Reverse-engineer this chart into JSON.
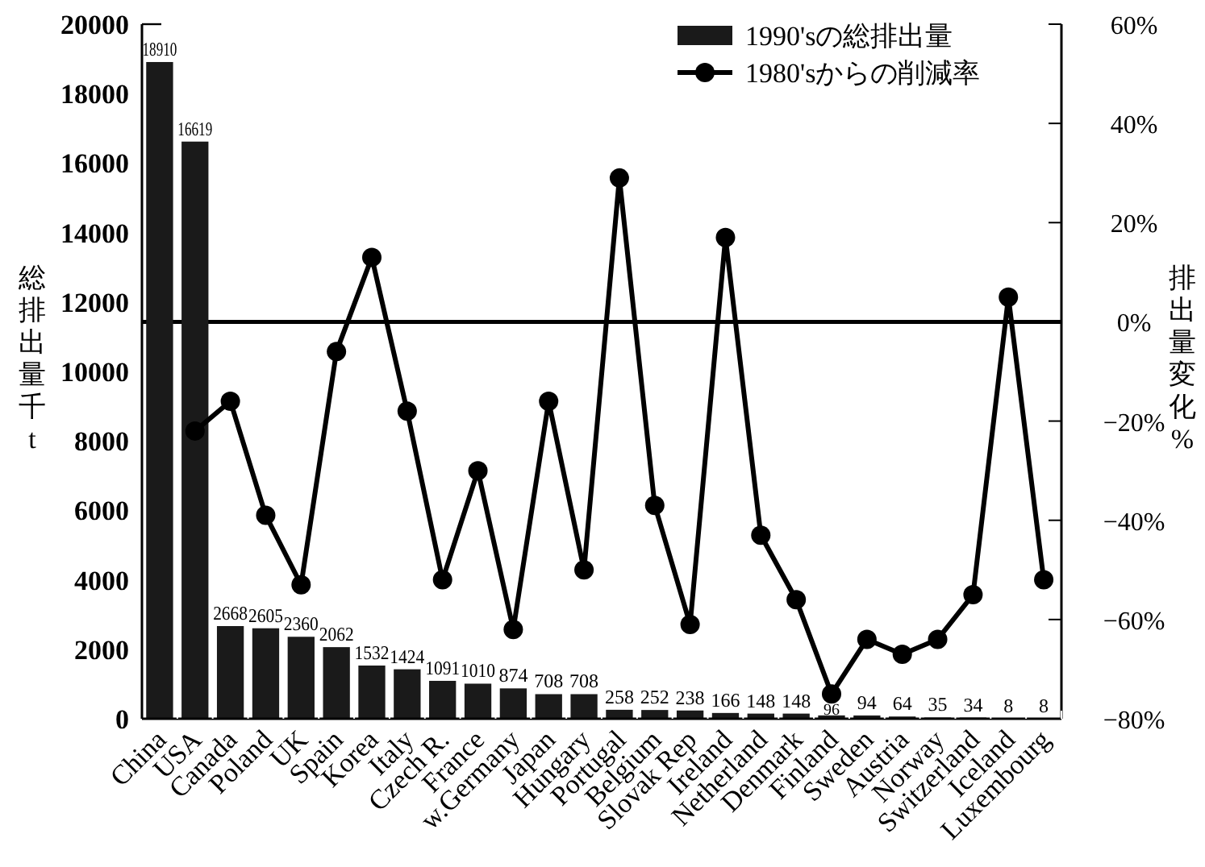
{
  "chart_data": {
    "type": "bar",
    "ylabel": "総排出量千t",
    "y2label": "排出量変化%",
    "categories": [
      "China",
      "USA",
      "Canada",
      "Poland",
      "UK",
      "Spain",
      "Korea",
      "Italy",
      "Czech R.",
      "France",
      "w.Germany",
      "Japan",
      "Hungary",
      "Portugal",
      "Belgium",
      "Slovak Rep",
      "Ireland",
      "Netherland",
      "Denmark",
      "Finland",
      "Sweden",
      "Austria",
      "Norway",
      "Switzerland",
      "Iceland",
      "Luxembourg"
    ],
    "series": [
      {
        "name": "1990'sの総排出量",
        "color": "#1a1a1a",
        "values": [
          18910,
          16619,
          2668,
          2605,
          2360,
          2062,
          1532,
          1424,
          1091,
          1010,
          874,
          708,
          708,
          258,
          252,
          238,
          166,
          148,
          148,
          96,
          94,
          64,
          35,
          34,
          8,
          8
        ],
        "value_labels": [
          "18910",
          "16619",
          "2668",
          "2605",
          "2360",
          "2062",
          "1532",
          "1424",
          "1091",
          "1010",
          "874",
          "708",
          "708",
          "258",
          "252",
          "238",
          "166",
          "148",
          "148",
          "96",
          "94",
          "64",
          "35",
          "34",
          "8",
          "8"
        ]
      },
      {
        "name": "1980'sからの削減率",
        "type": "line",
        "axis": "y2",
        "color": "#000000",
        "values": [
          null,
          -22,
          -16,
          -39,
          -53,
          -6,
          13,
          -18,
          -52,
          -30,
          -62,
          -16,
          -50,
          29,
          -37,
          -61,
          17,
          -43,
          -56,
          -75,
          -64,
          -67,
          -64,
          -55,
          5,
          -52
        ]
      }
    ],
    "ylim": [
      0,
      20000
    ],
    "yticks": [
      0,
      2000,
      4000,
      6000,
      8000,
      10000,
      12000,
      14000,
      16000,
      18000,
      20000
    ],
    "y2lim": [
      -80,
      60
    ],
    "y2ticks": [
      {
        "value": -80,
        "label": "−80%"
      },
      {
        "value": -60,
        "label": "−60%"
      },
      {
        "value": -40,
        "label": "−40%"
      },
      {
        "value": -20,
        "label": "−20%"
      },
      {
        "value": 0,
        "label": "0%"
      },
      {
        "value": 20,
        "label": "20%"
      },
      {
        "value": 40,
        "label": "40%"
      },
      {
        "value": 60,
        "label": "60%"
      }
    ],
    "ref_lines": [
      {
        "axis": "y2",
        "value": 0,
        "label": null
      }
    ],
    "legend": "top right",
    "marker": "circle",
    "line_style": "solid",
    "grid": false
  }
}
